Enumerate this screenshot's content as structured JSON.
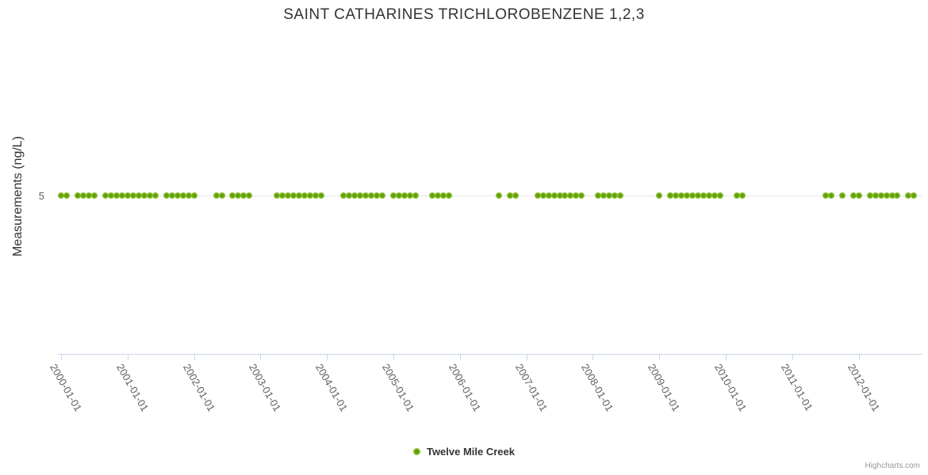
{
  "title": "SAINT CATHARINES TRICHLOROBENZENE 1,2,3",
  "y_axis": {
    "title": "Measurements (ng/L)",
    "tick_label": "5"
  },
  "x_axis": {
    "tick_labels": [
      "2000-01-01",
      "2001-01-01",
      "2002-01-01",
      "2003-01-01",
      "2004-01-01",
      "2005-01-01",
      "2006-01-01",
      "2007-01-01",
      "2008-01-01",
      "2009-01-01",
      "2010-01-01",
      "2011-01-01",
      "2012-01-01"
    ]
  },
  "legend": {
    "series_label": "Twelve Mile Creek"
  },
  "credits": "Highcharts.com",
  "colors": {
    "marker_center": "#4e8c0b",
    "marker_mid": "#76b113",
    "marker_edge": "#a6d35c",
    "axis_line": "#ccd6eb",
    "gridline": "#e6e6e6",
    "tick_label": "#606060",
    "title_text": "#333333",
    "credits_text": "#999999"
  },
  "chart_data": {
    "type": "scatter",
    "title": "SAINT CATHARINES TRICHLOROBENZENE 1,2,3",
    "xlabel": "",
    "ylabel": "Measurements (ng/L)",
    "x_range": [
      "2000-01-01",
      "2012-12-31"
    ],
    "y_visible_ticks": [
      5
    ],
    "grid": "horizontal-only",
    "legend_position": "bottom-center",
    "series": [
      {
        "name": "Twelve Mile Creek",
        "value_ng_per_L": 5,
        "dates": [
          "2000-01",
          "2000-02",
          "2000-04",
          "2000-05",
          "2000-06",
          "2000-07",
          "2000-09",
          "2000-10",
          "2000-11",
          "2000-12",
          "2001-01",
          "2001-02",
          "2001-03",
          "2001-04",
          "2001-05",
          "2001-06",
          "2001-08",
          "2001-09",
          "2001-10",
          "2001-11",
          "2001-12",
          "2002-01",
          "2002-05",
          "2002-06",
          "2002-08",
          "2002-09",
          "2002-10",
          "2002-11",
          "2003-04",
          "2003-05",
          "2003-06",
          "2003-07",
          "2003-08",
          "2003-09",
          "2003-10",
          "2003-11",
          "2003-12",
          "2004-04",
          "2004-05",
          "2004-06",
          "2004-07",
          "2004-08",
          "2004-09",
          "2004-10",
          "2004-11",
          "2005-01",
          "2005-02",
          "2005-03",
          "2005-04",
          "2005-05",
          "2005-08",
          "2005-09",
          "2005-10",
          "2005-11",
          "2006-08",
          "2006-10",
          "2006-11",
          "2007-03",
          "2007-04",
          "2007-05",
          "2007-06",
          "2007-07",
          "2007-08",
          "2007-09",
          "2007-10",
          "2007-11",
          "2008-02",
          "2008-03",
          "2008-04",
          "2008-05",
          "2008-06",
          "2009-01",
          "2009-03",
          "2009-04",
          "2009-05",
          "2009-06",
          "2009-07",
          "2009-08",
          "2009-09",
          "2009-10",
          "2009-11",
          "2009-12",
          "2010-03",
          "2010-04",
          "2011-07",
          "2011-08",
          "2011-10",
          "2011-12",
          "2012-01",
          "2012-03",
          "2012-04",
          "2012-05",
          "2012-06",
          "2012-07",
          "2012-08",
          "2012-10",
          "2012-11"
        ]
      }
    ]
  }
}
